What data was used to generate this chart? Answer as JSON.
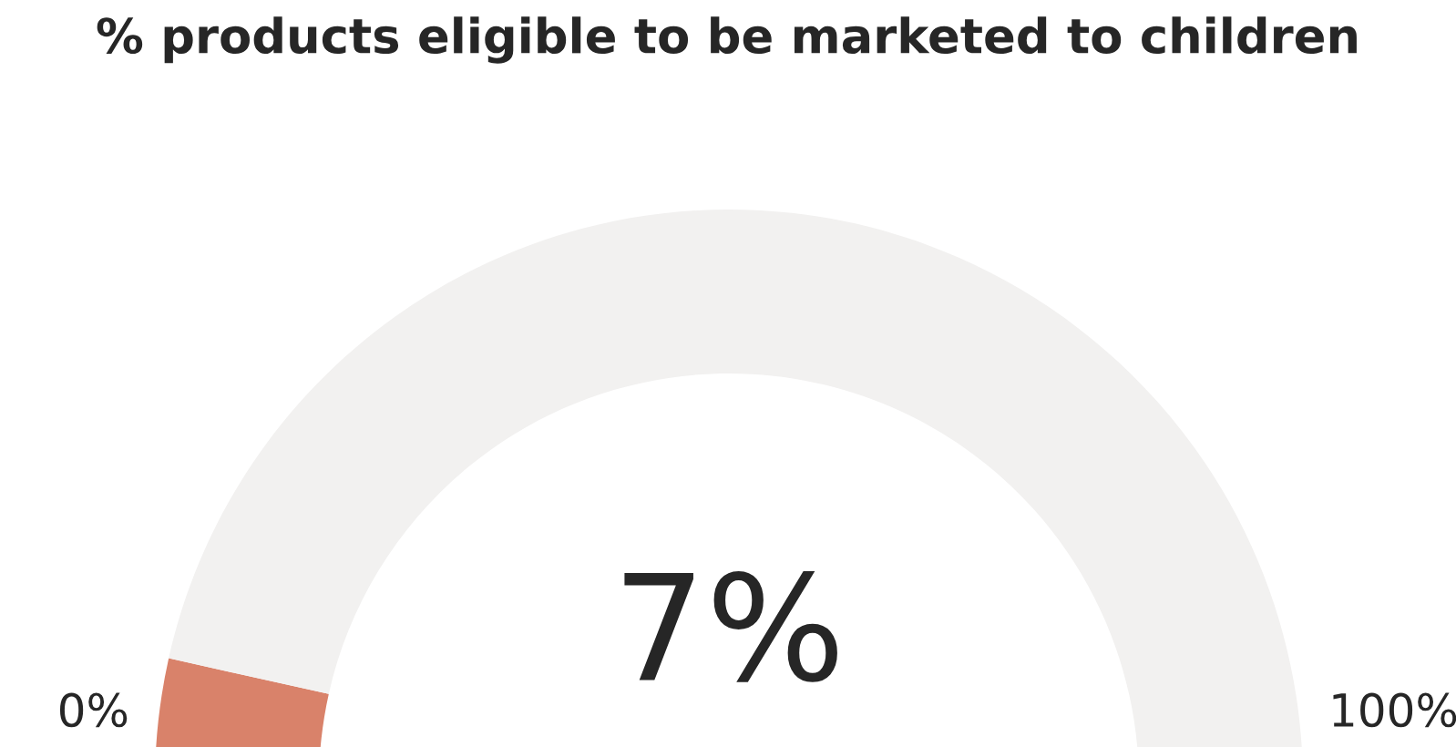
{
  "chart_data": {
    "type": "donut",
    "title": "% products eligible to be marketed to children",
    "categories": [
      null,
      null
    ],
    "values": [
      7,
      93
    ],
    "colors": [
      "#d9826a",
      "#f2f1f0"
    ],
    "annotations": [
      "0%",
      "100%",
      "7%"
    ]
  }
}
